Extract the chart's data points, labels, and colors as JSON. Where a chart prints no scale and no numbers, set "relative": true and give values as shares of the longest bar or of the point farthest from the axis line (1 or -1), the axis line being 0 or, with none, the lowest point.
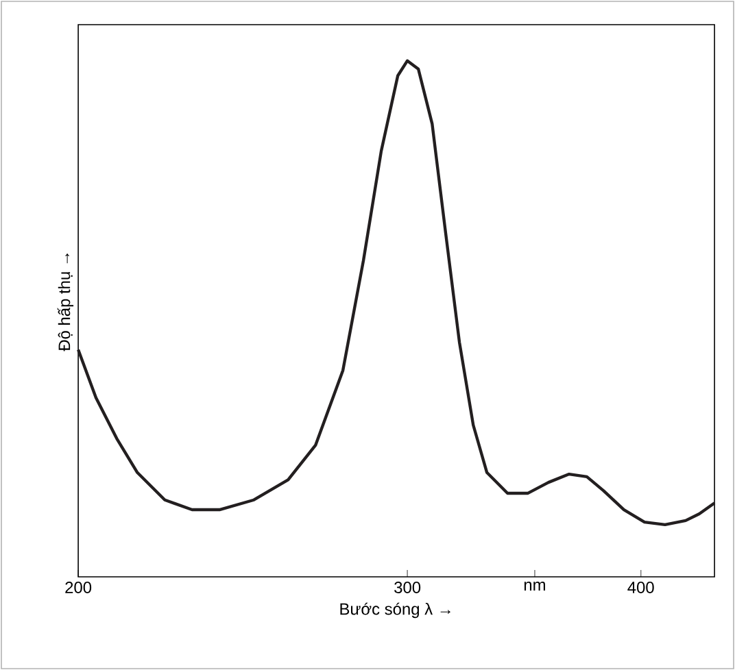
{
  "chart_data": {
    "type": "line",
    "xlabel": "Bước sóng λ →",
    "ylabel": "Độ hấp thụ →",
    "relative": true,
    "log": "x",
    "tick_labels": "x",
    "grid": false,
    "line_style": "solid",
    "marker": "none",
    "xlim": [
      200,
      438
    ],
    "xticks": [
      200,
      300,
      {
        "value": 351,
        "label": "nm"
      },
      400
    ],
    "series": [
      {
        "color": "#231f20",
        "x": [
          200,
          204.4,
          209.7,
          215.1,
          222.5,
          230.1,
          238.0,
          248.3,
          259.0,
          267.9,
          277.1,
          284.2,
          290.5,
          296.5,
          300,
          304.1,
          309.3,
          314.5,
          319.9,
          325.4,
          330.9,
          339.4,
          348.1,
          357.0,
          366.2,
          374.3,
          382.0,
          391.8,
          401.8,
          412.1,
          422.7,
          429.9,
          438
        ],
        "values": [
          0.44,
          0.347,
          0.268,
          0.202,
          0.149,
          0.13,
          0.13,
          0.149,
          0.188,
          0.255,
          0.4,
          0.613,
          0.825,
          0.971,
          1.0,
          0.984,
          0.878,
          0.666,
          0.454,
          0.294,
          0.202,
          0.162,
          0.162,
          0.183,
          0.199,
          0.194,
          0.167,
          0.13,
          0.106,
          0.101,
          0.109,
          0.122,
          0.143
        ]
      }
    ]
  }
}
